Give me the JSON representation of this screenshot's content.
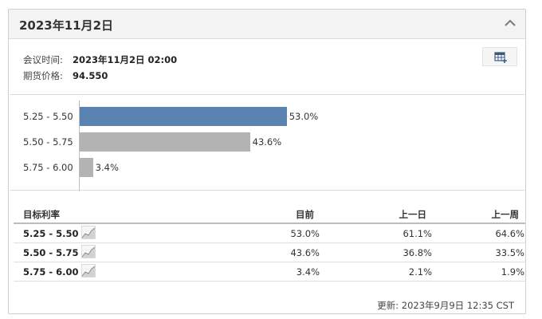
{
  "panel": {
    "title": "2023年11月2日",
    "meeting_time_label": "会议时间:",
    "meeting_time_value": "2023年11月2日 02:00",
    "futures_price_label": "期货价格:",
    "futures_price_value": "94.550",
    "icons": {
      "collapse": "chevron-up-icon",
      "export": "table-export-icon",
      "sparkline": "sparkline-icon"
    },
    "colors": {
      "primary_bar": "#5b83b1",
      "secondary_bar": "#b3b3b3"
    }
  },
  "chart_data": {
    "type": "bar",
    "orientation": "horizontal",
    "categories": [
      "5.25 - 5.50",
      "5.50 - 5.75",
      "5.75 - 6.00"
    ],
    "values": [
      53.0,
      43.6,
      3.4
    ],
    "value_labels": [
      "53.0%",
      "43.6%",
      "3.4%"
    ],
    "xlim": [
      0,
      100
    ],
    "grid": false
  },
  "table": {
    "headers": {
      "range": "目标利率",
      "current": "目前",
      "prev_day": "上一日",
      "prev_week": "上一周"
    },
    "rows": [
      {
        "range": "5.25 - 5.50",
        "current": "53.0%",
        "prev_day": "61.1%",
        "prev_week": "64.6%"
      },
      {
        "range": "5.50 - 5.75",
        "current": "43.6%",
        "prev_day": "36.8%",
        "prev_week": "33.5%"
      },
      {
        "range": "5.75 - 6.00",
        "current": "3.4%",
        "prev_day": "2.1%",
        "prev_week": "1.9%"
      }
    ]
  },
  "footer": {
    "updated": "更新: 2023年9月9日 12:35 CST"
  }
}
